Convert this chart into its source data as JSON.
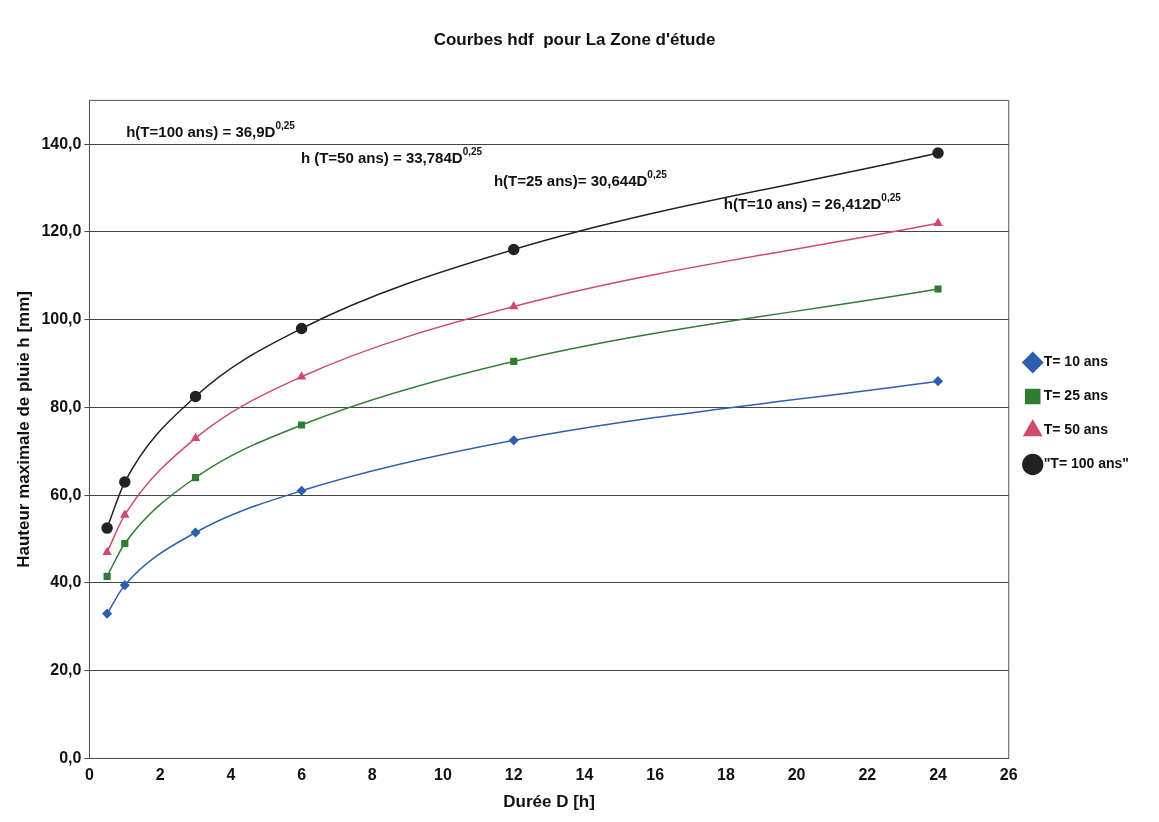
{
  "chart_data": {
    "type": "line",
    "title": "Courbes hdf  pour La Zone d'étude",
    "xlabel": "Durée D [h]",
    "ylabel": "Hauteur maximale de pluie h [mm]",
    "x": [
      0.5,
      1,
      3,
      6,
      12,
      24
    ],
    "series": [
      {
        "name": "T= 10 ans",
        "color": "#2e5fae",
        "marker": "diamond",
        "values": [
          33,
          39.5,
          51.5,
          61,
          72.5,
          86
        ]
      },
      {
        "name": "T= 25 ans",
        "color": "#2f7d32",
        "marker": "square",
        "values": [
          41.5,
          49,
          64,
          76,
          90.5,
          107
        ]
      },
      {
        "name": "T= 50 ans",
        "color": "#d04a6a",
        "marker": "triangle",
        "values": [
          47,
          55.5,
          73,
          87,
          103,
          122
        ]
      },
      {
        "name": "\"T= 100 ans\"",
        "color": "#222222",
        "marker": "circle",
        "values": [
          52.5,
          63,
          82.5,
          98,
          116,
          138
        ]
      }
    ],
    "xlim": [
      0,
      26
    ],
    "xticks": [
      0,
      2,
      4,
      6,
      8,
      10,
      12,
      14,
      16,
      18,
      20,
      22,
      24,
      26
    ],
    "ylim": [
      0,
      150
    ],
    "yticks": [
      {
        "value": 0,
        "label": "0,0"
      },
      {
        "value": 20,
        "label": "20,0"
      },
      {
        "value": 40,
        "label": "40,0"
      },
      {
        "value": 60,
        "label": "60,0"
      },
      {
        "value": 80,
        "label": "80,0"
      },
      {
        "value": 100,
        "label": "100,0"
      },
      {
        "value": 120,
        "label": "120,0"
      },
      {
        "value": 140,
        "label": "140,0"
      }
    ],
    "grid": "y",
    "legend": "right",
    "line_style": "solid",
    "annotations": [
      "h(T=100 ans) = 36,9D$^{0,25}$",
      "h (T=50 ans) = 33,784D$^{0,25}$",
      "h(T=25 ans)= 30,644D$^{0,25}$",
      "h(T=10 ans) = 26,412D$^{0,25}$"
    ]
  }
}
